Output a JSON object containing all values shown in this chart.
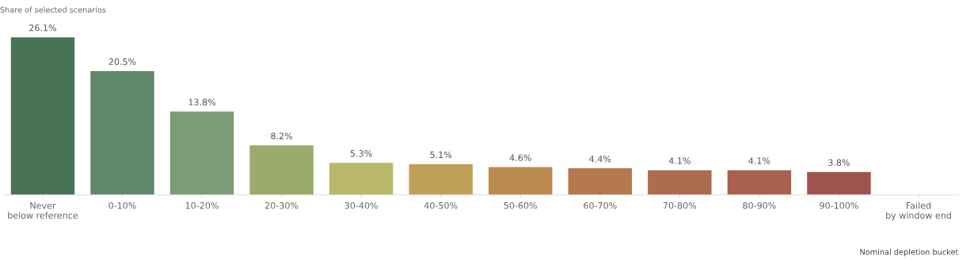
{
  "chart_data": {
    "type": "bar",
    "ylabel": "Share of selected scenarios",
    "xlabel": "Nominal depletion bucket",
    "categories": [
      "Never below reference",
      "0-10%",
      "10-20%",
      "20-30%",
      "30-40%",
      "40-50%",
      "50-60%",
      "60-70%",
      "70-80%",
      "80-90%",
      "90-100%",
      "Failed by window end"
    ],
    "values": [
      26.1,
      20.5,
      13.8,
      8.2,
      5.3,
      5.1,
      4.6,
      4.4,
      4.1,
      4.1,
      3.8,
      null
    ],
    "value_labels": [
      "26.1%",
      "20.5%",
      "13.8%",
      "8.2%",
      "5.3%",
      "5.1%",
      "4.6%",
      "4.4%",
      "4.1%",
      "4.1%",
      "3.8%",
      null
    ],
    "colors": [
      "#497356",
      "#5f886b",
      "#7c9c77",
      "#9aab6c",
      "#b9b868",
      "#c0a058",
      "#bb8a50",
      "#b5784f",
      "#ad6b50",
      "#a8604f",
      "#9e534c",
      "#9e534c"
    ],
    "grid": false,
    "legend": false
  }
}
